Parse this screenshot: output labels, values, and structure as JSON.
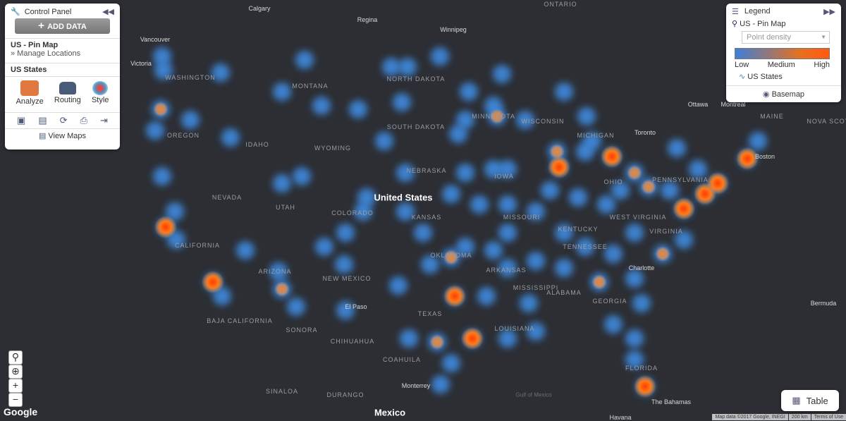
{
  "control_panel": {
    "title": "Control Panel",
    "add_button": "ADD DATA",
    "layer": {
      "name": "US - Pin Map",
      "link": "» Manage Locations"
    },
    "territory": "US States",
    "tools": [
      "Analyze",
      "Routing",
      "Style"
    ],
    "footer": "View Maps"
  },
  "legend": {
    "title": "Legend",
    "layer": "US - Pin Map",
    "style_select": "Point density",
    "scale": [
      "Low",
      "Medium",
      "High"
    ],
    "territory": "US States",
    "footer": "Basemap"
  },
  "map": {
    "labels": [
      "ONTARIO",
      "Calgary",
      "Regina",
      "Winnipeg",
      "Vancouver",
      "Victoria",
      "WASHINGTON",
      "MONTANA",
      "NORTH DAKOTA",
      "Ottawa",
      "Montreal",
      "SOUTH DAKOTA",
      "MINNESOTA",
      "WISCONSIN",
      "MICHIGAN",
      "Toronto",
      "MAINE",
      "NOVA SCOTIA",
      "OREGON",
      "IDAHO",
      "WYOMING",
      "Boston",
      "NEBRASKA",
      "IOWA",
      "United States",
      "NEVADA",
      "UTAH",
      "COLORADO",
      "KANSAS",
      "MISSOURI",
      "OHIO",
      "PENNSYLVANIA",
      "WEST VIRGINIA",
      "VIRGINIA",
      "KENTUCKY",
      "CALIFORNIA",
      "ARIZONA",
      "NEW MEXICO",
      "OKLAHOMA",
      "ARKANSAS",
      "TENNESSEE",
      "Charlotte",
      "MISSISSIPPI",
      "ALABAMA",
      "GEORGIA",
      "El Paso",
      "TEXAS",
      "Bermuda",
      "BAJA CALIFORNIA",
      "SONORA",
      "LOUISIANA",
      "CHIHUAHUA",
      "FLORIDA",
      "COAHUILA",
      "Monterrey",
      "Gulf of Mexico",
      "Mexico",
      "The Bahamas",
      "Havana",
      "DURANGO",
      "SINALOA"
    ],
    "zoom": [
      "+",
      "−"
    ],
    "logo": "Google",
    "attribution": "Map data ©2017 Google, INEGI",
    "scale": "200 km",
    "terms": "Terms of Use"
  },
  "table_button": "Table"
}
